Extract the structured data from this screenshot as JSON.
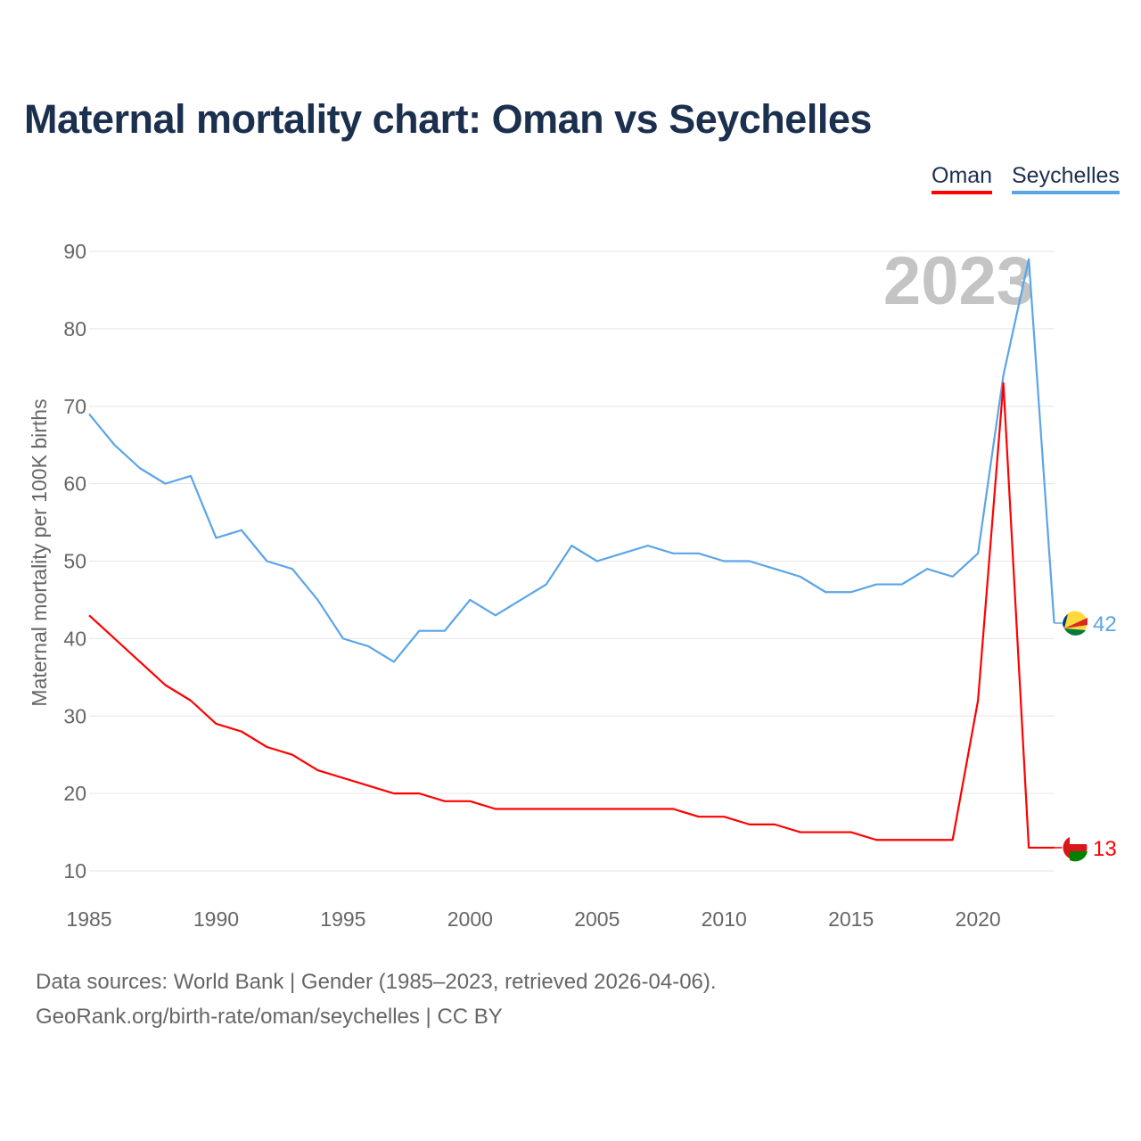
{
  "title": "Maternal mortality chart: Oman vs Seychelles",
  "footer": {
    "line1": "Data sources: World Bank | Gender (1985–2023, retrieved 2026-04-06).",
    "line2": "GeoRank.org/birth-rate/oman/seychelles | CC BY"
  },
  "chart_data": {
    "type": "line",
    "title": "Maternal mortality chart: Oman vs Seychelles",
    "xlabel": "",
    "ylabel": "Maternal mortality per 100K births",
    "year_label": "2023",
    "xlim": [
      1985,
      2023
    ],
    "ylim": [
      10,
      90
    ],
    "xticks": [
      1985,
      1990,
      1995,
      2000,
      2005,
      2010,
      2015,
      2020
    ],
    "yticks": [
      10,
      20,
      30,
      40,
      50,
      60,
      70,
      80,
      90
    ],
    "grid": true,
    "legend": "top-right",
    "x": [
      1985,
      1986,
      1987,
      1988,
      1989,
      1990,
      1991,
      1992,
      1993,
      1994,
      1995,
      1996,
      1997,
      1998,
      1999,
      2000,
      2001,
      2002,
      2003,
      2004,
      2005,
      2006,
      2007,
      2008,
      2009,
      2010,
      2011,
      2012,
      2013,
      2014,
      2015,
      2016,
      2017,
      2018,
      2019,
      2020,
      2021,
      2022,
      2023
    ],
    "series": [
      {
        "name": "Oman",
        "color": "#ff0000",
        "end_label": "13",
        "values": [
          43,
          40,
          37,
          34,
          32,
          29,
          28,
          26,
          25,
          23,
          22,
          21,
          20,
          20,
          19,
          19,
          18,
          18,
          18,
          18,
          18,
          18,
          18,
          18,
          17,
          17,
          16,
          16,
          15,
          15,
          15,
          14,
          14,
          14,
          14,
          32,
          73,
          13,
          13
        ]
      },
      {
        "name": "Seychelles",
        "color": "#5aa5e8",
        "end_label": "42",
        "values": [
          69,
          65,
          62,
          60,
          61,
          53,
          54,
          50,
          49,
          45,
          40,
          39,
          37,
          41,
          41,
          45,
          43,
          45,
          47,
          52,
          50,
          51,
          52,
          51,
          51,
          50,
          50,
          49,
          48,
          46,
          46,
          47,
          47,
          49,
          48,
          51,
          74,
          89,
          42
        ]
      }
    ]
  }
}
